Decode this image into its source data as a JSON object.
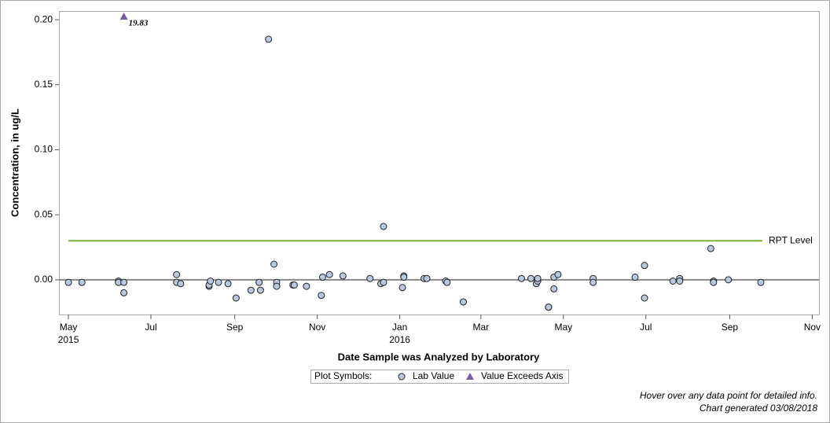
{
  "chart_data": {
    "type": "scatter",
    "x_label": "Date Sample was Analyzed by Laboratory",
    "y_label": "Concentration, in ug/L",
    "xlim": [
      "2015-04-24",
      "2016-11-06"
    ],
    "ylim": [
      -0.0267,
      0.2067
    ],
    "xticks": [
      {
        "value": "2015-05-01",
        "label": "May",
        "sublabel": "2015"
      },
      {
        "value": "2015-07-01",
        "label": "Jul"
      },
      {
        "value": "2015-09-01",
        "label": "Sep"
      },
      {
        "value": "2015-11-01",
        "label": "Nov"
      },
      {
        "value": "2016-01-01",
        "label": "Jan",
        "sublabel": "2016"
      },
      {
        "value": "2016-03-01",
        "label": "Mar"
      },
      {
        "value": "2016-05-01",
        "label": "May"
      },
      {
        "value": "2016-07-01",
        "label": "Jul"
      },
      {
        "value": "2016-09-01",
        "label": "Sep"
      },
      {
        "value": "2016-11-01",
        "label": "Nov"
      }
    ],
    "yticks": [
      {
        "value": 0,
        "label": "0.00"
      },
      {
        "value": 0.05,
        "label": "0.05"
      },
      {
        "value": 0.1,
        "label": "0.10"
      },
      {
        "value": 0.15,
        "label": "0.15"
      },
      {
        "value": 0.2,
        "label": "0.20"
      }
    ],
    "reference_lines": [
      {
        "name": "RPT Level",
        "value": 0.03,
        "color": "#7fb03a"
      }
    ],
    "zero_line": {
      "value": 0,
      "color": "#888888"
    },
    "series": [
      {
        "name": "Lab Value",
        "marker": "circle",
        "color": "#b9c8dc",
        "x": [
          "2015-05-01",
          "2015-05-11",
          "2015-06-07",
          "2015-06-07",
          "2015-06-11",
          "2015-06-11",
          "2015-07-20",
          "2015-07-20",
          "2015-07-23",
          "2015-08-13",
          "2015-08-13",
          "2015-08-14",
          "2015-08-20",
          "2015-08-27",
          "2015-09-02",
          "2015-09-13",
          "2015-09-19",
          "2015-09-20",
          "2015-09-26",
          "2015-09-30",
          "2015-10-02",
          "2015-10-02",
          "2015-10-14",
          "2015-10-15",
          "2015-10-24",
          "2015-11-04",
          "2015-11-05",
          "2015-11-10",
          "2015-11-20",
          "2015-12-10",
          "2015-12-18",
          "2015-12-20",
          "2015-12-20",
          "2016-01-03",
          "2016-01-04",
          "2016-01-04",
          "2016-01-19",
          "2016-01-21",
          "2016-02-04",
          "2016-02-05",
          "2016-02-17",
          "2016-03-31",
          "2016-04-07",
          "2016-04-11",
          "2016-04-12",
          "2016-04-12",
          "2016-04-20",
          "2016-04-20",
          "2016-04-24",
          "2016-04-24",
          "2016-04-27",
          "2016-05-23",
          "2016-05-23",
          "2016-06-23",
          "2016-06-30",
          "2016-06-30",
          "2016-07-21",
          "2016-07-26",
          "2016-07-26",
          "2016-08-18",
          "2016-08-20",
          "2016-08-20",
          "2016-08-31",
          "2016-09-24"
        ],
        "values": [
          -0.002,
          -0.002,
          -0.001,
          -0.002,
          -0.002,
          -0.01,
          0.004,
          -0.002,
          -0.003,
          -0.005,
          -0.004,
          -0.001,
          -0.002,
          -0.003,
          -0.014,
          -0.008,
          -0.002,
          -0.008,
          0.185,
          0.012,
          -0.002,
          -0.005,
          -0.004,
          -0.004,
          -0.005,
          -0.012,
          0.002,
          0.004,
          0.003,
          0.001,
          -0.003,
          -0.002,
          0.041,
          -0.006,
          0.003,
          0.002,
          0.001,
          0.001,
          -0.001,
          -0.002,
          -0.017,
          0.001,
          0.001,
          -0.003,
          -0.001,
          0.001,
          -0.021,
          -0.021,
          -0.007,
          0.002,
          0.004,
          0.001,
          -0.002,
          0.002,
          0.011,
          -0.014,
          -0.001,
          0.001,
          -0.001,
          0.024,
          -0.001,
          -0.002,
          0.0,
          -0.002
        ]
      },
      {
        "name": "Value Exceeds Axis",
        "marker": "triangle",
        "color": "#7a5ea0",
        "x": [
          "2015-06-11"
        ],
        "values": [
          19.83
        ],
        "value_labels": [
          "19.83"
        ]
      }
    ],
    "legend_title": "Plot Symbols:",
    "footnotes": [
      "Hover over any data point for detailed info.",
      "Chart generated 03/08/2018"
    ]
  }
}
